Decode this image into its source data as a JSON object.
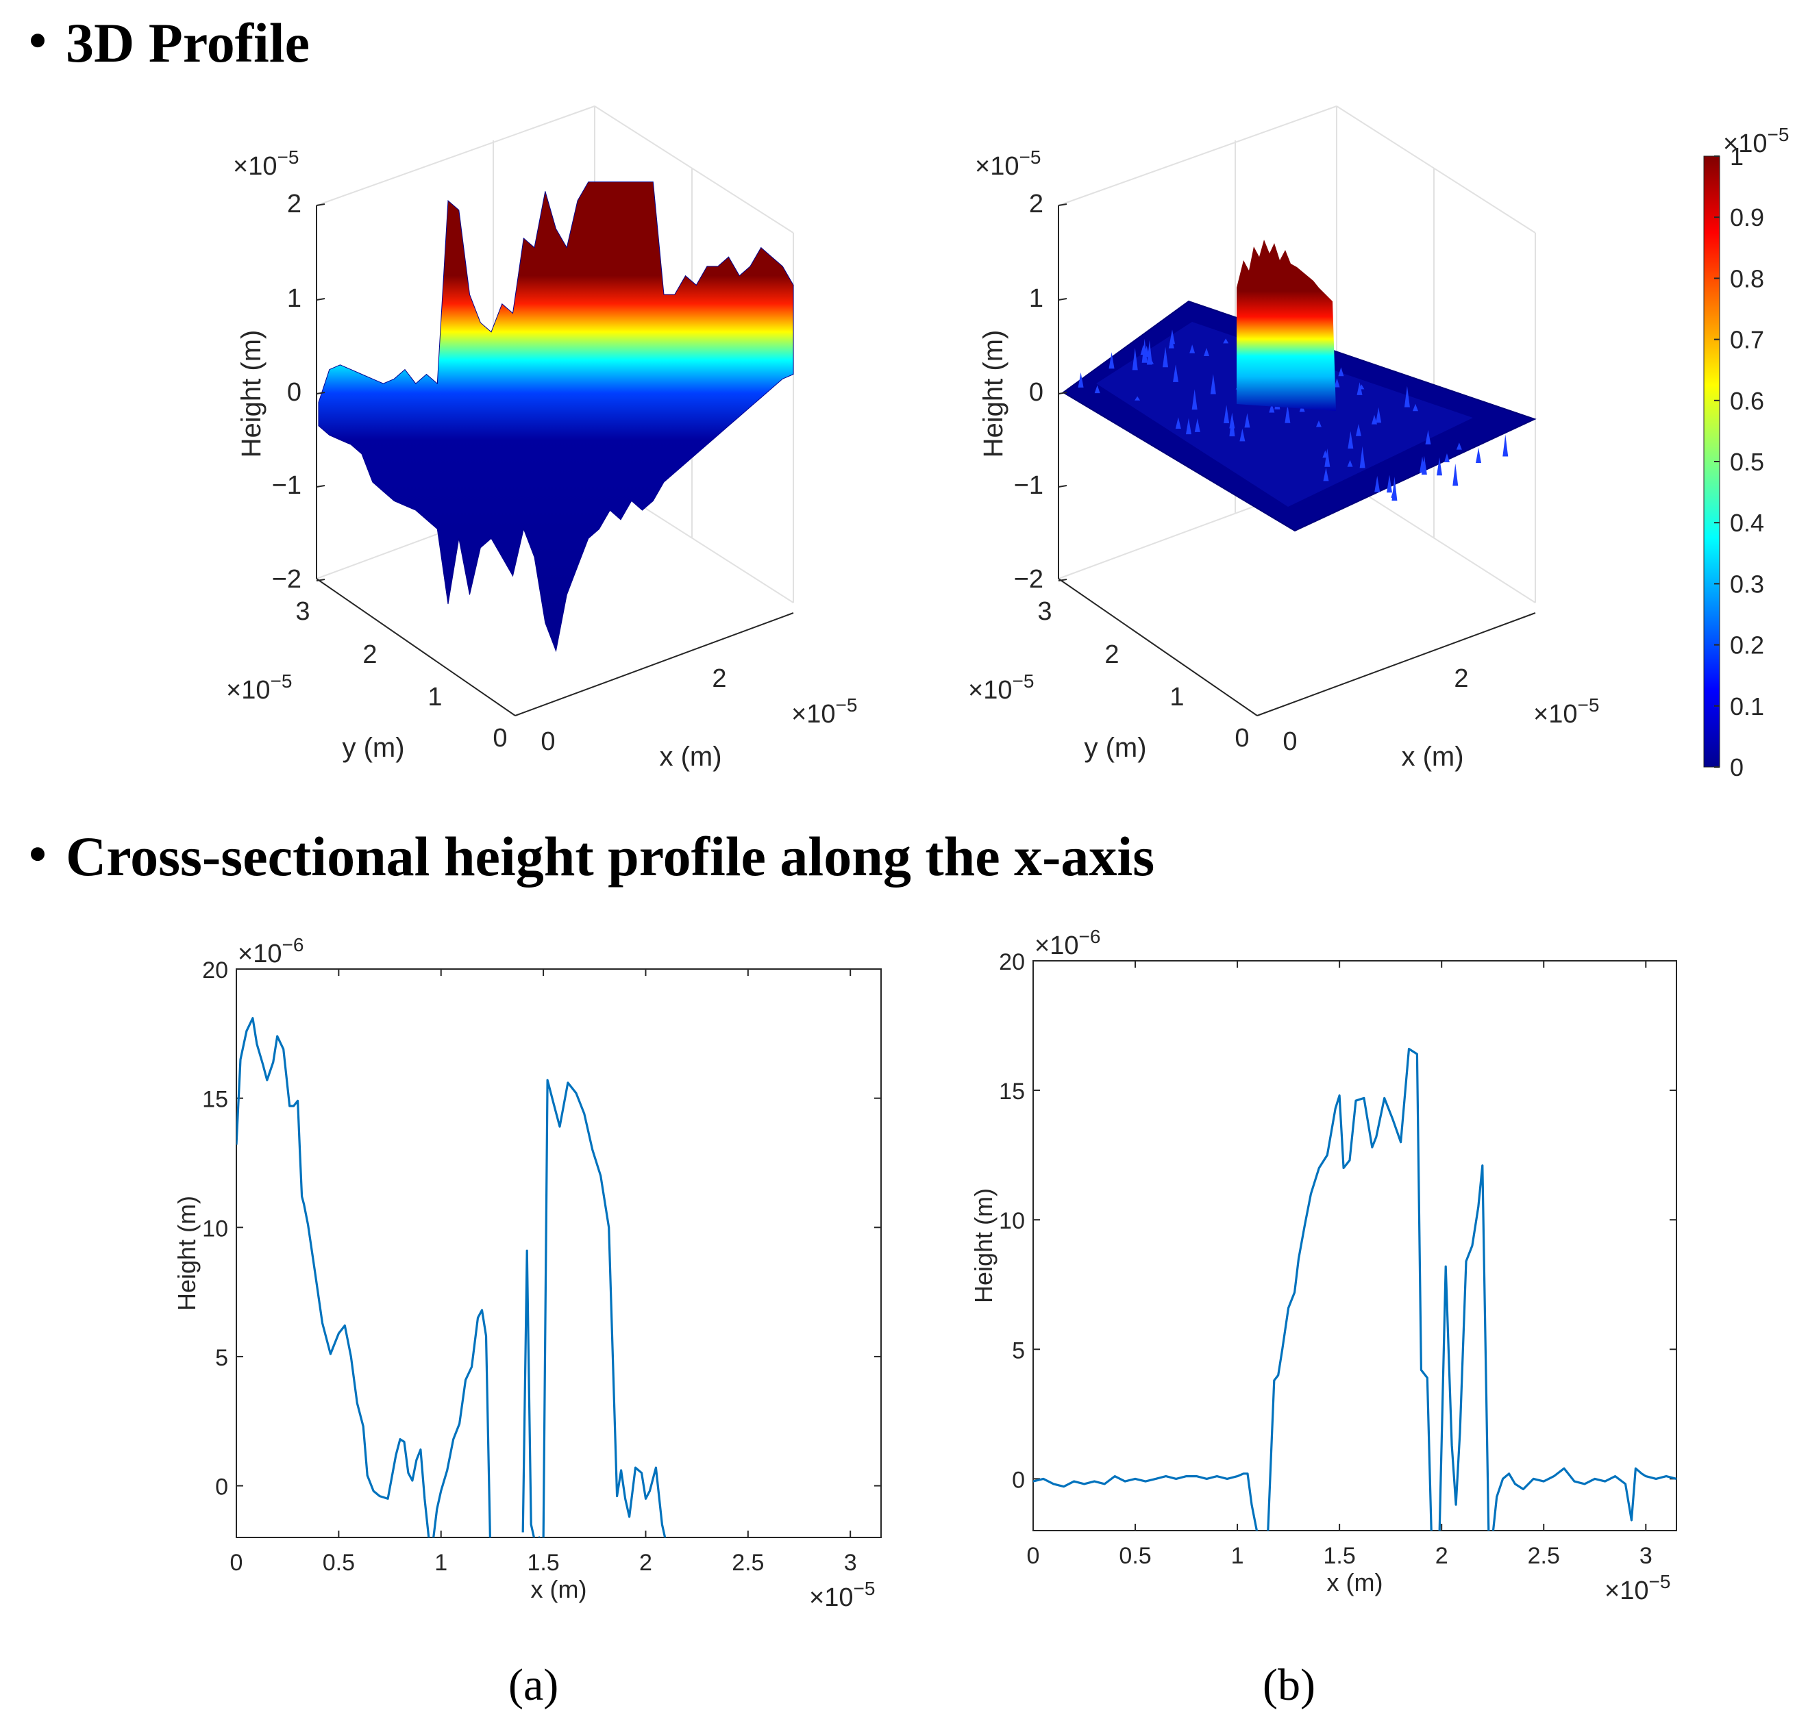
{
  "sections": {
    "profile3d_title": "3D Profile",
    "cross_title": "Cross-sectional height profile along the x-axis",
    "bullet": "・"
  },
  "captions": {
    "a": "(a)",
    "b": "(b)"
  },
  "chart_data": [
    {
      "id": "surface-a",
      "type": "surface3d",
      "zlabel": "Height (m)",
      "xlabel": "x (m)",
      "ylabel": "y (m)",
      "zticks": [
        "2",
        "1",
        "0",
        "−1",
        "−2"
      ],
      "xticks": [
        "0",
        "2"
      ],
      "yticks": [
        "3",
        "2",
        "1",
        "0"
      ],
      "z_exponent": "×10",
      "z_exp_power": "−5",
      "x_exponent": "×10",
      "x_exp_power": "−5",
      "y_exponent": "×10",
      "y_exp_power": "−5",
      "zlim": [
        -2e-05,
        2e-05
      ],
      "xlim": [
        0,
        3.2e-05
      ],
      "ylim": [
        0,
        3.2e-05
      ],
      "surface_profile": [
        -0.15,
        0.2,
        0.25,
        0.2,
        0.15,
        0.1,
        0.05,
        0.1,
        0.2,
        0.05,
        0.15,
        0.05,
        2.0,
        1.9,
        1.0,
        0.7,
        0.6,
        0.9,
        0.8,
        1.6,
        1.5,
        2.1,
        1.7,
        1.5,
        2.0,
        2.2,
        2.2,
        2.2,
        2.2,
        2.2,
        2.2,
        2.2,
        1.0,
        1.0,
        1.2,
        1.1,
        1.3,
        1.3,
        1.4,
        1.2,
        1.3,
        1.5,
        1.4,
        1.3,
        1.1
      ],
      "surface_low": [
        -0.4,
        -0.5,
        -0.55,
        -0.6,
        -0.7,
        -1.0,
        -1.1,
        -1.2,
        -1.25,
        -1.3,
        -1.4,
        -1.5,
        -2.3,
        -1.6,
        -2.2,
        -1.7,
        -1.6,
        -1.8,
        -2.0,
        -1.5,
        -1.8,
        -2.5,
        -2.8,
        -2.2,
        -1.9,
        -1.6,
        -1.5,
        -1.3,
        -1.4,
        -1.2,
        -1.3,
        -1.2,
        -1.0,
        -0.9,
        -0.8,
        -0.7,
        -0.6,
        -0.5,
        -0.4,
        -0.3,
        -0.2,
        -0.1,
        0.0,
        0.1,
        0.15
      ]
    },
    {
      "id": "surface-b",
      "type": "surface3d",
      "zlabel": "Height (m)",
      "xlabel": "x (m)",
      "ylabel": "y (m)",
      "zticks": [
        "2",
        "1",
        "0",
        "−1",
        "−2"
      ],
      "xticks": [
        "0",
        "2"
      ],
      "yticks": [
        "3",
        "2",
        "1",
        "0"
      ],
      "z_exponent": "×10",
      "z_exp_power": "−5",
      "x_exponent": "×10",
      "x_exp_power": "−5",
      "y_exponent": "×10",
      "y_exp_power": "−5",
      "zlim": [
        -2e-05,
        2e-05
      ],
      "xlim": [
        0,
        3.2e-05
      ],
      "ylim": [
        0,
        3.2e-05
      ],
      "peak_height": 1.6e-05
    },
    {
      "id": "colorbar",
      "type": "colorbar",
      "ticks": [
        "1",
        "0.9",
        "0.8",
        "0.7",
        "0.6",
        "0.5",
        "0.4",
        "0.3",
        "0.2",
        "0.1",
        "0"
      ],
      "exponent": "×10",
      "exp_power": "−5",
      "range": [
        0,
        1
      ],
      "colormap": "jet"
    },
    {
      "id": "line-a",
      "type": "line",
      "xlabel": "x (m)",
      "ylabel": "Height (m)",
      "xticks": [
        "0",
        "0.5",
        "1",
        "1.5",
        "2",
        "2.5",
        "3"
      ],
      "yticks": [
        "20",
        "15",
        "10",
        "5",
        "0"
      ],
      "x_exponent": "×10",
      "x_exp_power": "−5",
      "y_exponent": "×10",
      "y_exp_power": "−6",
      "xlim": [
        0,
        3.15
      ],
      "ylim": [
        -2,
        20
      ],
      "line_color": "#0072BD",
      "series": [
        {
          "name": "profile",
          "x": [
            0,
            0.02,
            0.05,
            0.08,
            0.1,
            0.13,
            0.15,
            0.18,
            0.2,
            0.23,
            0.26,
            0.28,
            0.3,
            0.31,
            0.32,
            0.33,
            0.35,
            0.38,
            0.42,
            0.46,
            0.5,
            0.53,
            0.56,
            0.59,
            0.62,
            0.64,
            0.67,
            0.7,
            0.74,
            0.78,
            0.8,
            0.82,
            0.84,
            0.86,
            0.88,
            0.9,
            0.92,
            0.94,
            0.96,
            0.98,
            1.0,
            1.03,
            1.06,
            1.09,
            1.12,
            1.15,
            1.18,
            1.2,
            1.22,
            1.24,
            1.26
          ],
          "y": [
            13.2,
            16.5,
            17.6,
            18.1,
            17.1,
            16.3,
            15.7,
            16.4,
            17.4,
            16.9,
            14.7,
            14.7,
            14.9,
            13.0,
            11.2,
            10.9,
            10.1,
            8.5,
            6.3,
            5.1,
            5.9,
            6.2,
            5.0,
            3.2,
            2.3,
            0.4,
            -0.2,
            -0.4,
            -0.5,
            1.2,
            1.8,
            1.7,
            0.5,
            0.2,
            1.0,
            1.4,
            -0.5,
            -2.0,
            -2.2,
            -0.9,
            -0.2,
            0.6,
            1.8,
            2.4,
            4.1,
            4.6,
            6.5,
            6.8,
            5.8,
            -2.0,
            -2.2
          ]
        }
      ],
      "series_2": [
        {
          "name": "profile-b",
          "x": [
            1.4,
            1.42,
            1.44,
            1.46,
            1.48,
            1.5,
            1.52,
            1.55,
            1.58,
            1.62,
            1.66,
            1.7,
            1.74,
            1.78,
            1.82,
            1.86,
            1.88,
            1.9,
            1.92,
            1.95,
            1.98,
            2.0,
            2.02,
            2.05,
            2.08,
            2.1
          ],
          "y": [
            -1.8,
            9.1,
            -1.5,
            -2.2,
            -2.0,
            -2.2,
            15.7,
            14.8,
            13.9,
            15.6,
            15.2,
            14.4,
            13.0,
            12.0,
            10.0,
            -0.4,
            0.6,
            -0.5,
            -1.2,
            0.7,
            0.5,
            -0.5,
            -0.2,
            0.7,
            -1.5,
            -2.2
          ]
        }
      ]
    },
    {
      "id": "line-b",
      "type": "line",
      "xlabel": "x (m)",
      "ylabel": "Height (m)",
      "xticks": [
        "0",
        "0.5",
        "1",
        "1.5",
        "2",
        "2.5",
        "3"
      ],
      "yticks": [
        "20",
        "15",
        "10",
        "5",
        "0"
      ],
      "x_exponent": "×10",
      "x_exp_power": "−5",
      "y_exponent": "×10",
      "y_exp_power": "−6",
      "xlim": [
        0,
        3.15
      ],
      "ylim": [
        -2,
        20
      ],
      "line_color": "#0072BD",
      "series": [
        {
          "name": "profile",
          "x": [
            0,
            0.05,
            0.1,
            0.15,
            0.2,
            0.25,
            0.3,
            0.35,
            0.4,
            0.45,
            0.5,
            0.55,
            0.6,
            0.65,
            0.7,
            0.75,
            0.8,
            0.85,
            0.9,
            0.95,
            1.0,
            1.03,
            1.05,
            1.07,
            1.1,
            1.13,
            1.15,
            1.18,
            1.2,
            1.22,
            1.25,
            1.28,
            1.3,
            1.33,
            1.36,
            1.4,
            1.44,
            1.48,
            1.5,
            1.52,
            1.55,
            1.58,
            1.62,
            1.66,
            1.68,
            1.72,
            1.76,
            1.8,
            1.84,
            1.86,
            1.88,
            1.9,
            1.93,
            1.95,
            1.97,
            1.99,
            2.02,
            2.05,
            2.07,
            2.09,
            2.12,
            2.15,
            2.18,
            2.2,
            2.23,
            2.25,
            2.27,
            2.3,
            2.33,
            2.36,
            2.4,
            2.45,
            2.5,
            2.55,
            2.6,
            2.65,
            2.7,
            2.75,
            2.8,
            2.85,
            2.9,
            2.93,
            2.95,
            2.98,
            3.0,
            3.05,
            3.1,
            3.15
          ],
          "y": [
            -0.1,
            0.0,
            -0.2,
            -0.3,
            -0.1,
            -0.2,
            -0.1,
            -0.2,
            0.1,
            -0.1,
            0.0,
            -0.1,
            0.0,
            0.1,
            0.0,
            0.1,
            0.1,
            0.0,
            0.1,
            0.0,
            0.1,
            0.2,
            0.2,
            -1.0,
            -2.2,
            -2.2,
            -2.0,
            3.8,
            4.0,
            5.0,
            6.6,
            7.2,
            8.5,
            9.8,
            11.0,
            12.0,
            12.5,
            14.3,
            14.8,
            12.0,
            12.3,
            14.6,
            14.7,
            12.8,
            13.2,
            14.7,
            13.9,
            13.0,
            16.6,
            16.5,
            16.4,
            4.2,
            3.9,
            -2.1,
            -2.2,
            -2.0,
            8.2,
            1.3,
            -1.0,
            1.8,
            8.4,
            9.0,
            10.5,
            12.1,
            -2.0,
            -2.2,
            -0.7,
            0.0,
            0.2,
            -0.2,
            -0.4,
            0.0,
            -0.1,
            0.1,
            0.4,
            -0.1,
            -0.2,
            0.0,
            -0.1,
            0.1,
            -0.2,
            -1.6,
            0.4,
            0.2,
            0.1,
            0.0,
            0.1,
            0.0
          ]
        }
      ]
    }
  ]
}
